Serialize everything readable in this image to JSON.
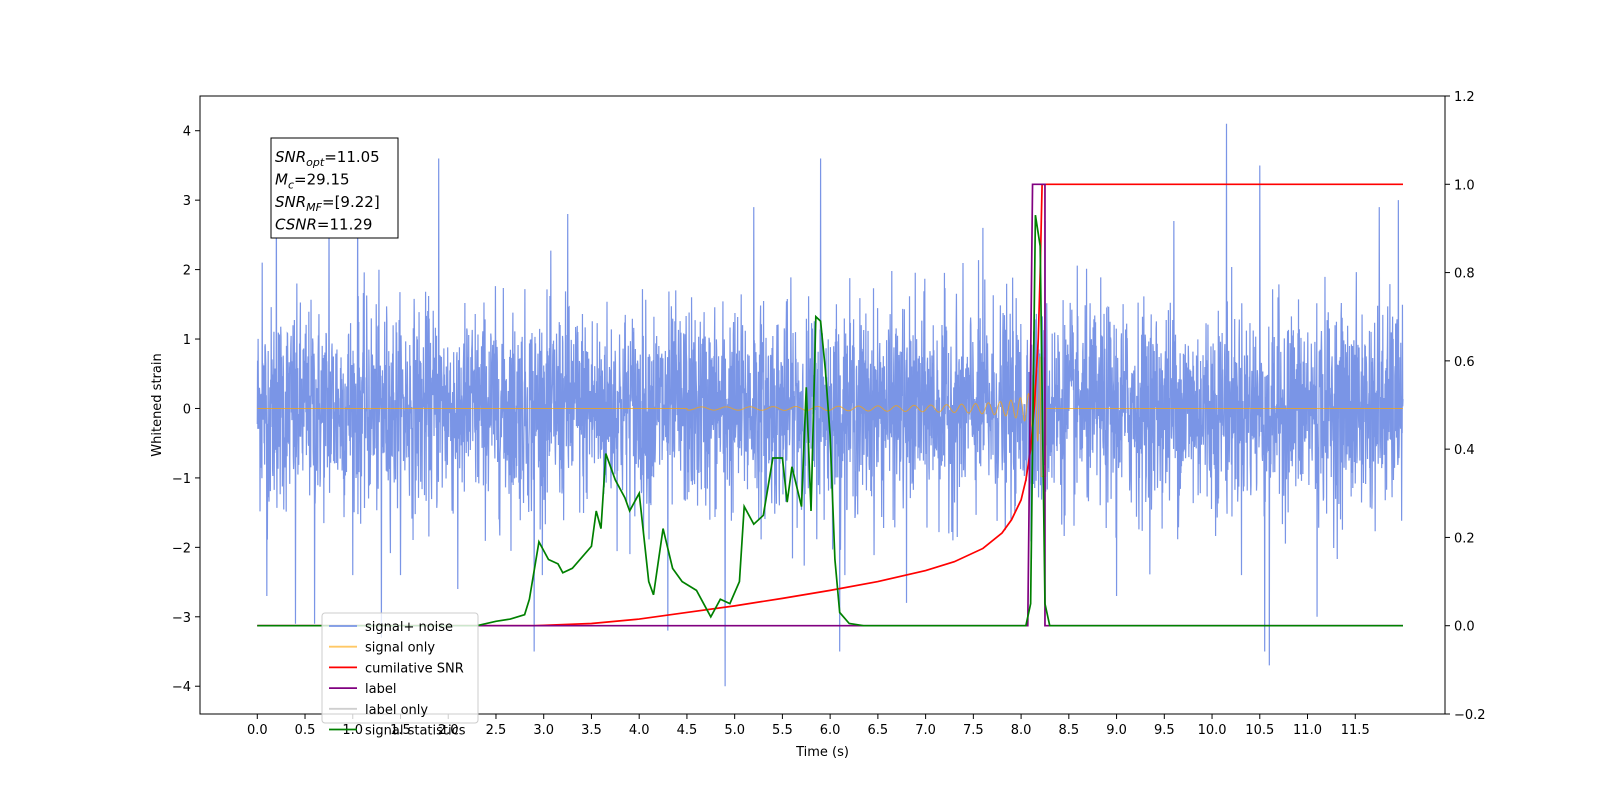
{
  "chart_data": {
    "type": "line",
    "title": "",
    "xlabel": "Time (s)",
    "ylabel": "Whitened strain",
    "y2label": "",
    "xlim": [
      -0.6,
      12.44
    ],
    "ylim": [
      -4.4,
      4.5
    ],
    "y2lim": [
      -0.2,
      1.2
    ],
    "x_ticks": [
      "0.0",
      "0.5",
      "1.0",
      "1.5",
      "2.0",
      "2.5",
      "3.0",
      "3.5",
      "4.0",
      "4.5",
      "5.0",
      "5.5",
      "6.0",
      "6.5",
      "7.0",
      "7.5",
      "8.0",
      "8.5",
      "9.0",
      "9.5",
      "10.0",
      "10.5",
      "11.0",
      "11.5"
    ],
    "y_ticks": [
      "−4",
      "−3",
      "−2",
      "−1",
      "0",
      "1",
      "2",
      "3",
      "4"
    ],
    "y2_ticks": [
      "−0.2",
      "0.0",
      "0.2",
      "0.4",
      "0.6",
      "0.8",
      "1.0",
      "1.2"
    ],
    "grid": false,
    "legend_position": "lower-left",
    "annotation": {
      "lines": [
        {
          "base": "SNR",
          "sub": "opt",
          "value": "=11.05"
        },
        {
          "base": "M",
          "sub": "c",
          "value": "=29.15"
        },
        {
          "base": "SNR",
          "sub": "MF",
          "value": "=[9.22]"
        },
        {
          "base": "CSNR",
          "sub": "",
          "value": "=11.29"
        }
      ]
    },
    "series": [
      {
        "name": "signal+ noise",
        "color": "#7a95e6",
        "axis": "left",
        "kind": "noise",
        "x_range": [
          0.0,
          12.0
        ],
        "typical_range": [
          -1.6,
          1.6
        ],
        "peaks": [
          {
            "x": 0.05,
            "y": 2.1
          },
          {
            "x": 0.1,
            "y": -2.7
          },
          {
            "x": 0.2,
            "y": 3.3
          },
          {
            "x": 0.4,
            "y": -3.1
          },
          {
            "x": 0.6,
            "y": -3.1
          },
          {
            "x": 0.75,
            "y": 2.9
          },
          {
            "x": 1.05,
            "y": 3.2
          },
          {
            "x": 1.3,
            "y": -3.3
          },
          {
            "x": 1.9,
            "y": 3.6
          },
          {
            "x": 2.1,
            "y": -2.6
          },
          {
            "x": 2.9,
            "y": -3.5
          },
          {
            "x": 3.25,
            "y": 2.8
          },
          {
            "x": 4.3,
            "y": -3.2
          },
          {
            "x": 4.9,
            "y": -4.0
          },
          {
            "x": 5.2,
            "y": 2.9
          },
          {
            "x": 5.9,
            "y": 3.6
          },
          {
            "x": 6.1,
            "y": -3.5
          },
          {
            "x": 6.8,
            "y": -2.8
          },
          {
            "x": 7.6,
            "y": 2.6
          },
          {
            "x": 8.25,
            "y": 2.7
          },
          {
            "x": 9.0,
            "y": -2.7
          },
          {
            "x": 9.6,
            "y": 2.7
          },
          {
            "x": 10.15,
            "y": 4.1
          },
          {
            "x": 10.5,
            "y": 3.5
          },
          {
            "x": 10.55,
            "y": -3.5
          },
          {
            "x": 10.6,
            "y": -3.7
          },
          {
            "x": 11.1,
            "y": -3.0
          },
          {
            "x": 11.75,
            "y": 2.9
          },
          {
            "x": 11.95,
            "y": 3.0
          }
        ]
      },
      {
        "name": "signal only",
        "color": "#ffa500",
        "axis": "left",
        "kind": "chirp",
        "x_range": [
          0.0,
          12.0
        ],
        "merger_x": 8.22
      },
      {
        "name": "cumilative SNR",
        "color": "#ff0000",
        "axis": "right",
        "kind": "line",
        "x": [
          0.0,
          2.9,
          3.5,
          4.0,
          4.5,
          5.0,
          5.5,
          6.0,
          6.5,
          7.0,
          7.3,
          7.6,
          7.8,
          7.9,
          8.0,
          8.05,
          8.1,
          8.14,
          8.18,
          8.2,
          8.22,
          12.0
        ],
        "y": [
          0.0,
          0.0,
          0.005,
          0.015,
          0.03,
          0.045,
          0.062,
          0.08,
          0.1,
          0.125,
          0.145,
          0.175,
          0.21,
          0.24,
          0.285,
          0.33,
          0.4,
          0.5,
          0.65,
          0.8,
          1.0,
          1.0
        ]
      },
      {
        "name": "label",
        "color": "#800080",
        "axis": "right",
        "kind": "line",
        "x": [
          0.0,
          8.07,
          8.12,
          8.25,
          8.25,
          12.0
        ],
        "y": [
          0.0,
          0.0,
          1.0,
          1.0,
          0.0,
          0.0
        ]
      },
      {
        "name": "label only",
        "color": "#cfcfcf",
        "axis": "right",
        "kind": "line",
        "x": [],
        "y": []
      },
      {
        "name": "signal statistics",
        "color": "#008000",
        "axis": "right",
        "kind": "line",
        "x": [
          0.0,
          2.3,
          2.5,
          2.65,
          2.8,
          2.85,
          2.95,
          3.05,
          3.15,
          3.2,
          3.3,
          3.5,
          3.55,
          3.6,
          3.65,
          3.75,
          3.85,
          3.9,
          4.0,
          4.1,
          4.15,
          4.25,
          4.35,
          4.45,
          4.6,
          4.7,
          4.75,
          4.85,
          4.95,
          5.05,
          5.1,
          5.2,
          5.3,
          5.4,
          5.5,
          5.55,
          5.6,
          5.7,
          5.75,
          5.8,
          5.85,
          5.9,
          5.95,
          6.0,
          6.05,
          6.1,
          6.2,
          6.35,
          8.05,
          8.1,
          8.15,
          8.2,
          8.25,
          8.3,
          12.0
        ],
        "y": [
          0.0,
          0.0,
          0.01,
          0.015,
          0.025,
          0.06,
          0.19,
          0.15,
          0.14,
          0.12,
          0.13,
          0.18,
          0.26,
          0.22,
          0.39,
          0.33,
          0.29,
          0.26,
          0.3,
          0.1,
          0.07,
          0.22,
          0.13,
          0.1,
          0.08,
          0.04,
          0.02,
          0.06,
          0.05,
          0.1,
          0.27,
          0.23,
          0.25,
          0.38,
          0.38,
          0.28,
          0.36,
          0.27,
          0.54,
          0.26,
          0.7,
          0.69,
          0.58,
          0.43,
          0.15,
          0.03,
          0.005,
          0.0,
          0.0,
          0.05,
          0.93,
          0.86,
          0.05,
          0.0,
          0.0
        ]
      }
    ]
  }
}
